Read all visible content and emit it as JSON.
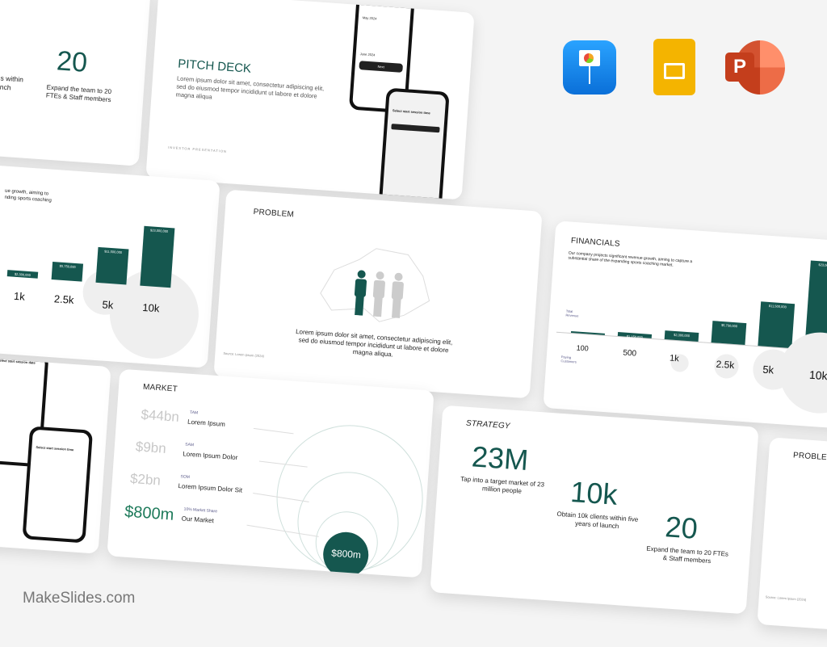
{
  "brand": "MakeSlides.com",
  "colors": {
    "accent": "#15574f",
    "background": "#f4f4f4",
    "keynote": "#1a8cf0",
    "google_slides": "#f4b400",
    "powerpoint": "#d04423"
  },
  "app_icons": [
    {
      "name": "keynote-icon"
    },
    {
      "name": "google-slides-icon"
    },
    {
      "name": "powerpoint-icon"
    }
  ],
  "pitch": {
    "title": "PITCH DECK",
    "body": "Lorem ipsum dolor sit amet, consectetur adipiscing elit, sed do eiusmod tempor incididunt ut labore et dolore magna aliqua",
    "footer": "INVESTOR PRESENTATION",
    "phone1_title": "Select start session date",
    "phone1_month": "May 2024",
    "phone1_month2": "June 2024",
    "phone1_button": "Next",
    "phone2_title": "Select start session time"
  },
  "strategy": {
    "title": "STRATEGY",
    "stats": [
      {
        "value": "23M",
        "text": "Tap into a target market of 23 million people"
      },
      {
        "value": "10k",
        "text": "Obtain 10k clients within five years of launch"
      },
      {
        "value": "20",
        "text": "Expand the team to 20 FTEs & Staff members"
      }
    ],
    "partial_value": "k",
    "partial_text": "s within\nnch"
  },
  "financials": {
    "title": "FINANCIALS",
    "body": "Our company projects significant revenue growth, aiming to capture a substantial share of the expanding sports coaching market.",
    "partial_body": "ue growth, aiming to\nnding sports coaching",
    "revenue_label": "Total Revenue",
    "customers_label": "Paying Customers",
    "bars": [
      {
        "customers": "100",
        "revenue": "",
        "value": 0.2
      },
      {
        "customers": "500",
        "revenue": "$1,150,000",
        "value": 1.15
      },
      {
        "customers": "1k",
        "revenue": "$2,300,000",
        "value": 2.3
      },
      {
        "customers": "2.5k",
        "revenue": "$5,750,000",
        "value": 5.75
      },
      {
        "customers": "5k",
        "revenue": "$11,500,000",
        "value": 11.5
      },
      {
        "customers": "10k",
        "revenue": "$23,000,000",
        "value": 23
      }
    ]
  },
  "problem": {
    "title": "PROBLEM",
    "body": "Lorem ipsum dolor sit amet, consectetur adipiscing elit, sed do eiusmod tempor incididunt ut labore et dolore magna aliqua.",
    "source": "Source: Lorem ipsum (2024)"
  },
  "market": {
    "title": "MARKET",
    "rows": [
      {
        "value": "$44bn",
        "tag": "TAM",
        "label": "Lorem Ipsum"
      },
      {
        "value": "$9bn",
        "tag": "SAM",
        "label": "Lorem Ipsum Dolor"
      },
      {
        "value": "$2bn",
        "tag": "SOM",
        "label": "Lorem Ipsum Dolor Sit"
      },
      {
        "value": "$800m",
        "tag": "10% Market Share",
        "label": "Our Market"
      }
    ],
    "circle_label": "$800m"
  }
}
